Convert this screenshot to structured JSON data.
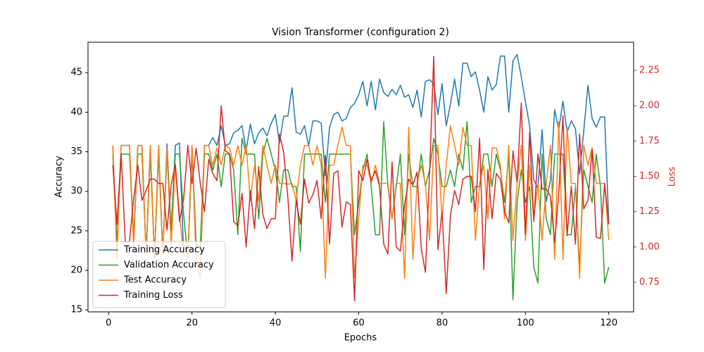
{
  "chart_data": {
    "type": "line",
    "title": "Vision Transformer (configuration 2)",
    "x_label": "Epochs",
    "y_label": "Accuracy",
    "y2_label": "Loss",
    "y2_color": "#d62728",
    "legend": "lower left",
    "x": [
      1,
      2,
      3,
      4,
      5,
      6,
      7,
      8,
      9,
      10,
      11,
      12,
      13,
      14,
      15,
      16,
      17,
      18,
      19,
      20,
      21,
      22,
      23,
      24,
      25,
      26,
      27,
      28,
      29,
      30,
      31,
      32,
      33,
      34,
      35,
      36,
      37,
      38,
      39,
      40,
      41,
      42,
      43,
      44,
      45,
      46,
      47,
      48,
      49,
      50,
      51,
      52,
      53,
      54,
      55,
      56,
      57,
      58,
      59,
      60,
      61,
      62,
      63,
      64,
      65,
      66,
      67,
      68,
      69,
      70,
      71,
      72,
      73,
      74,
      75,
      76,
      77,
      78,
      79,
      80,
      81,
      82,
      83,
      84,
      85,
      86,
      87,
      88,
      89,
      90,
      91,
      92,
      93,
      94,
      95,
      96,
      97,
      98,
      99,
      100,
      101,
      102,
      103,
      104,
      105,
      106,
      107,
      108,
      109,
      110,
      111,
      112,
      113,
      114,
      115,
      116,
      117,
      118,
      119,
      120
    ],
    "xlim": [
      -4.95,
      125.95
    ],
    "xticks": [
      0,
      20,
      40,
      60,
      80,
      100,
      120
    ],
    "ylim": [
      14.75,
      48.85
    ],
    "yticks": [
      15,
      20,
      25,
      30,
      35,
      40,
      45
    ],
    "y2lim": [
      0.54,
      2.45
    ],
    "y2ticks": [
      0.75,
      {
        "value": 1,
        "label": "1.00"
      },
      1.25,
      {
        "value": 1.5,
        "label": "1.50"
      },
      1.75,
      {
        "value": 2,
        "label": "2.00"
      },
      2.25
    ],
    "series": [
      {
        "name": "Training Accuracy",
        "color": "#1f77b4",
        "values": [
          35.8,
          23,
          35.8,
          35.8,
          35.8,
          24,
          35.8,
          35.8,
          22,
          35.8,
          21.5,
          35.8,
          22,
          36,
          25,
          35.8,
          36.1,
          22,
          21.5,
          35.8,
          23.3,
          23,
          35.8,
          35.8,
          36.8,
          35.8,
          38.3,
          35.8,
          36,
          37.4,
          37.7,
          38.3,
          35.2,
          38.5,
          36,
          37.4,
          38,
          37,
          38.6,
          39.7,
          36.1,
          39.5,
          39.5,
          43.1,
          37.5,
          37.2,
          38.3,
          35.8,
          38.9,
          38.9,
          38.6,
          32,
          38.1,
          39.7,
          40,
          38.9,
          39.2,
          40.6,
          41.1,
          42.2,
          43.9,
          40.8,
          43.9,
          40.3,
          44.2,
          42.5,
          42,
          42.9,
          42.2,
          43.4,
          41.9,
          42.2,
          40.6,
          42.8,
          39.4,
          43.9,
          44.1,
          43.6,
          39.7,
          43.6,
          38.3,
          41,
          44.2,
          40.8,
          46.2,
          46.2,
          44.5,
          45.1,
          42.8,
          40,
          44.5,
          42.8,
          43.5,
          47.1,
          47.1,
          40,
          46.5,
          47.3,
          44.5,
          41.3,
          38.3,
          31.5,
          30.3,
          37.8,
          28.7,
          31.4,
          40.3,
          37.8,
          41.4,
          37.5,
          38.9,
          37.9,
          32.2,
          37.7,
          43.4,
          39.2,
          38.1,
          39.4,
          39.4,
          26
        ]
      },
      {
        "name": "Validation Accuracy",
        "color": "#2ca02c",
        "values": [
          34.7,
          23,
          34.7,
          34.7,
          34.7,
          24,
          34.7,
          34.7,
          22,
          34.7,
          21.5,
          34.7,
          22,
          34.7,
          25,
          34.7,
          34.7,
          27,
          21.5,
          34.7,
          23,
          23,
          34.7,
          34.7,
          32.7,
          34.7,
          30.6,
          34.7,
          34.7,
          32.7,
          24.5,
          36.7,
          34.7,
          34.7,
          34.7,
          26.5,
          34.7,
          36.7,
          34.7,
          32.7,
          28.6,
          32.7,
          32.7,
          30.6,
          30.6,
          22.4,
          34.7,
          34.7,
          34.7,
          34.7,
          34.7,
          28.6,
          34.7,
          34.7,
          34.7,
          34.7,
          34.7,
          34.7,
          24.5,
          28.6,
          32.7,
          34.7,
          30.6,
          24.5,
          24.5,
          38.8,
          30.6,
          26.5,
          30.6,
          34.7,
          24.5,
          34.7,
          30.6,
          30.6,
          34.7,
          30.6,
          32.7,
          36.7,
          34.7,
          30.6,
          30.6,
          32.7,
          30.6,
          34.7,
          32.7,
          38.8,
          28.6,
          30.6,
          30.6,
          34.7,
          34.7,
          30.6,
          34.7,
          32.7,
          28.6,
          34.7,
          16.3,
          28.6,
          32.7,
          28.6,
          30.6,
          20.4,
          18.4,
          34.7,
          26.5,
          24.5,
          34.7,
          34.7,
          34.7,
          24.5,
          24.5,
          30.6,
          20.4,
          32.7,
          30.6,
          28.6,
          34.7,
          30.6,
          18.4,
          20.4
        ]
      },
      {
        "name": "Test Accuracy",
        "color": "#ff7f0e",
        "values": [
          35.8,
          21.4,
          35.8,
          35.8,
          35.8,
          23,
          35.8,
          35.8,
          22,
          35.8,
          21.5,
          35.8,
          22,
          35.5,
          23,
          33.5,
          27,
          22,
          21.5,
          35.8,
          21,
          19,
          35.8,
          35.8,
          33.3,
          35.5,
          33.3,
          35.8,
          35.5,
          33.3,
          35.8,
          33.3,
          35.8,
          28.8,
          33.3,
          28.8,
          35.8,
          33.3,
          31,
          33.3,
          31,
          31,
          30.9,
          31,
          28.8,
          33.3,
          35.8,
          35.8,
          33.3,
          35.8,
          33.3,
          19,
          33.3,
          33.3,
          35.8,
          38.1,
          35.8,
          35.8,
          19,
          26.5,
          33.3,
          33.3,
          31,
          33.3,
          31,
          31,
          31,
          26.5,
          31,
          31,
          19,
          38.1,
          21.4,
          31,
          33.3,
          31,
          23.8,
          35.8,
          35.8,
          26.5,
          33.3,
          38.3,
          35.8,
          33.3,
          38.1,
          35.8,
          35.8,
          23.8,
          31,
          33.3,
          26.5,
          35.5,
          35.5,
          33.3,
          26.5,
          35.8,
          23.8,
          31,
          35.8,
          23.8,
          33.3,
          26.5,
          31,
          23.8,
          31,
          35.8,
          21.4,
          38.8,
          21.4,
          38.1,
          31,
          31,
          19,
          35.8,
          33.3,
          35.5,
          31,
          31,
          31,
          23.8
        ]
      },
      {
        "name": "Training Loss",
        "color": "#d62728",
        "axis": "y2",
        "values": [
          1.58,
          1.16,
          1.66,
          1.03,
          1.04,
          1.34,
          1.58,
          1.33,
          1.4,
          1.48,
          1.48,
          1.45,
          1.45,
          1.12,
          1.44,
          1.58,
          1.18,
          1.34,
          1.72,
          1.45,
          1.7,
          1.45,
          1.25,
          1.62,
          1.52,
          1.47,
          2,
          1.68,
          1.66,
          1.18,
          1.15,
          1.38,
          1,
          1.4,
          1.13,
          1.57,
          1.23,
          1.13,
          1.2,
          1.2,
          1.8,
          1.67,
          1.35,
          0.9,
          1.33,
          1.16,
          1.48,
          1.31,
          1.37,
          1.47,
          1.2,
          1.65,
          1.02,
          1.52,
          1.54,
          1.14,
          1.32,
          1.3,
          0.62,
          1.54,
          1.47,
          1.62,
          1.47,
          1.54,
          1.43,
          1.02,
          0.95,
          1.6,
          1,
          0.97,
          1.3,
          1.48,
          1.44,
          1.53,
          0.99,
          0.82,
          1.52,
          2.35,
          0.98,
          1.25,
          0.67,
          1.22,
          1.4,
          1.3,
          1.48,
          1.5,
          1.5,
          1.25,
          1.77,
          0.84,
          1.55,
          1.2,
          1.52,
          1.48,
          1.25,
          1.17,
          1.68,
          1.46,
          2.02,
          1.09,
          1.81,
          1.18,
          1.66,
          1.41,
          1.41,
          1.36,
          1.03,
          1.38,
          1.93,
          1.08,
          1.43,
          1.02,
          1.8,
          1.27,
          1.33,
          1.69,
          1.07,
          1.06,
          1.45,
          1.16
        ]
      }
    ]
  }
}
